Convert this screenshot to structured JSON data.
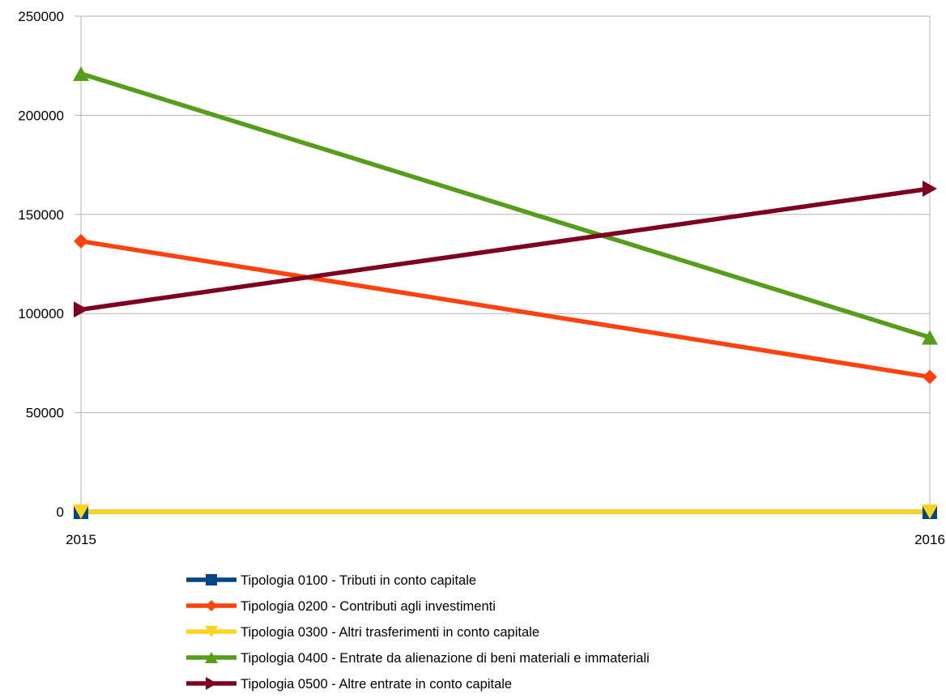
{
  "chart_data": {
    "type": "line",
    "title": "",
    "xlabel": "",
    "ylabel": "",
    "x": [
      "2015",
      "2016"
    ],
    "ylim": [
      0,
      250000
    ],
    "yticks": [
      0,
      50000,
      100000,
      150000,
      200000,
      250000
    ],
    "grid": true,
    "legend_position": "bottom",
    "series": [
      {
        "name": "Tipologia 0100 - Tributi in conto capitale",
        "values": [
          0,
          0
        ],
        "color": "#004586",
        "marker": "square"
      },
      {
        "name": "Tipologia 0200 - Contributi agli investimenti",
        "values": [
          136500,
          68000
        ],
        "color": "#ff420e",
        "marker": "diamond"
      },
      {
        "name": "Tipologia 0300 - Altri trasferimenti in conto capitale",
        "values": [
          0,
          0
        ],
        "color": "#ffd320",
        "marker": "triangle-down"
      },
      {
        "name": "Tipologia 0400 - Entrate da alienazione di beni materiali e immateriali",
        "values": [
          221000,
          88000
        ],
        "color": "#579d1c",
        "marker": "triangle-up"
      },
      {
        "name": "Tipologia 0500 - Altre entrate in conto capitale",
        "values": [
          102000,
          163000
        ],
        "color": "#7e0021",
        "marker": "triangle-right"
      }
    ]
  }
}
